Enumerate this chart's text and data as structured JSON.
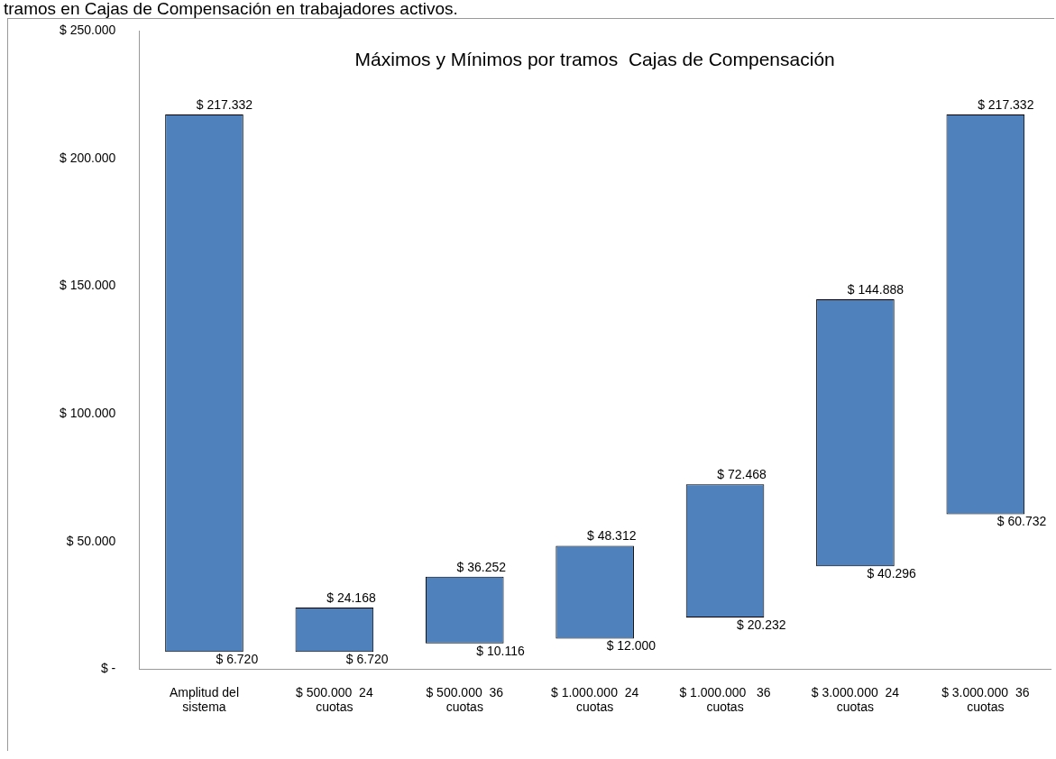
{
  "chart_data": {
    "type": "bar",
    "title": "Máximos y Mínimos por tramos  Cajas de Compensación",
    "categories": [
      "Amplitud del sistema",
      "$ 500.000  24 cuotas",
      "$ 500.000  36 cuotas",
      "$ 1.000.000  24 cuotas",
      "$ 1.000.000   36 cuotas",
      "$ 3.000.000  24 cuotas",
      "$ 3.000.000  36 cuotas"
    ],
    "base": [
      6720,
      6720,
      10116,
      12000,
      20232,
      40296,
      60732
    ],
    "values": [
      210612,
      17448,
      26136,
      36312,
      52236,
      104592,
      156600
    ],
    "color": "#4f81bd",
    "ylim": [
      0,
      250000
    ],
    "yticks": [
      {
        "value": 0,
        "label": "$ -"
      },
      {
        "value": 50000,
        "label": "$ 50.000"
      },
      {
        "value": 100000,
        "label": "$ 100.000"
      },
      {
        "value": 150000,
        "label": "$ 150.000"
      },
      {
        "value": 200000,
        "label": "$ 200.000"
      },
      {
        "value": 250000,
        "label": "$ 250.000"
      }
    ],
    "grid": false,
    "legend": false,
    "annotations": [
      "tramos en Cajas de Compensación en trabajadores activos.",
      {
        "text": "$ 217.332",
        "x": "Amplitud del sistema",
        "y": 217332
      },
      {
        "text": "$ 6.720",
        "x": "Amplitud del sistema",
        "y": 6720
      },
      {
        "text": "$ 24.168",
        "x": "$ 500.000  24 cuotas",
        "y": 24168
      },
      {
        "text": "$ 6.720",
        "x": "$ 500.000  24 cuotas",
        "y": 6720
      },
      {
        "text": "$ 36.252",
        "x": "$ 500.000  36 cuotas",
        "y": 36252
      },
      {
        "text": "$ 10.116",
        "x": "$ 500.000  36 cuotas",
        "y": 10116
      },
      {
        "text": "$ 48.312",
        "x": "$ 1.000.000  24 cuotas",
        "y": 48312
      },
      {
        "text": "$ 12.000",
        "x": "$ 1.000.000  24 cuotas",
        "y": 12000
      },
      {
        "text": "$ 72.468",
        "x": "$ 1.000.000   36 cuotas",
        "y": 72468
      },
      {
        "text": "$ 20.232",
        "x": "$ 1.000.000   36 cuotas",
        "y": 20232
      },
      {
        "text": "$ 144.888",
        "x": "$ 3.000.000  24 cuotas",
        "y": 144888
      },
      {
        "text": "$ 40.296",
        "x": "$ 3.000.000  24 cuotas",
        "y": 40296
      },
      {
        "text": "$ 217.332",
        "x": "$ 3.000.000  36 cuotas",
        "y": 217332
      },
      {
        "text": "$ 60.732",
        "x": "$ 3.000.000  36 cuotas",
        "y": 60732
      }
    ]
  }
}
